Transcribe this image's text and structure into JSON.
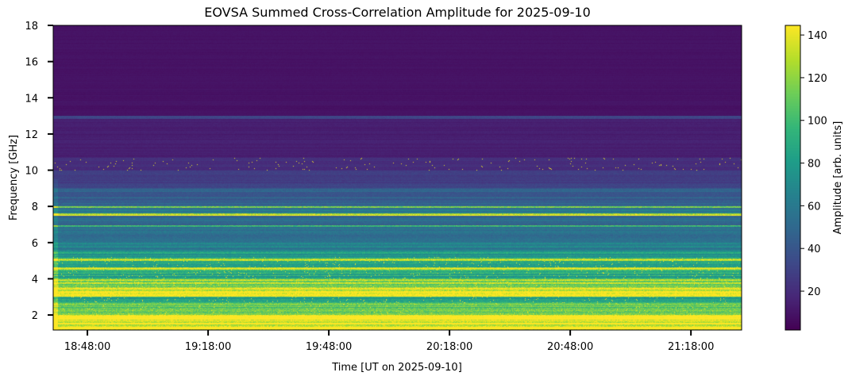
{
  "chart_data": {
    "type": "heatmap",
    "title": "EOVSA Summed Cross-Correlation Amplitude for 2025-09-10",
    "xlabel": "Time [UT on 2025-09-10]",
    "ylabel": "Frequency [GHz]",
    "colorbar_label": "Amplitude [arb. units]",
    "colormap": "viridis",
    "xlim_minutes_after_1848": [
      -8.5,
      162.6
    ],
    "ylim": [
      1.17,
      18
    ],
    "clim": [
      1.8,
      144.5
    ],
    "x_ticks": [
      {
        "label": "18:48:00",
        "minutes": 0
      },
      {
        "label": "19:18:00",
        "minutes": 30
      },
      {
        "label": "19:48:00",
        "minutes": 60
      },
      {
        "label": "20:18:00",
        "minutes": 90
      },
      {
        "label": "20:48:00",
        "minutes": 120
      },
      {
        "label": "21:18:00",
        "minutes": 150
      }
    ],
    "y_ticks": [
      {
        "label": "2",
        "value": 2
      },
      {
        "label": "4",
        "value": 4
      },
      {
        "label": "6",
        "value": 6
      },
      {
        "label": "8",
        "value": 8
      },
      {
        "label": "10",
        "value": 10
      },
      {
        "label": "12",
        "value": 12
      },
      {
        "label": "14",
        "value": 14
      },
      {
        "label": "16",
        "value": 16
      },
      {
        "label": "18",
        "value": 18
      }
    ],
    "colorbar_ticks": [
      {
        "label": "20",
        "value": 20
      },
      {
        "label": "40",
        "value": 40
      },
      {
        "label": "60",
        "value": 60
      },
      {
        "label": "80",
        "value": 80
      },
      {
        "label": "100",
        "value": 100
      },
      {
        "label": "120",
        "value": 120
      },
      {
        "label": "140",
        "value": 140
      }
    ],
    "band_profile": [
      {
        "f0": 1.17,
        "f1": 2.0,
        "amp": 145
      },
      {
        "f0": 2.0,
        "f1": 2.7,
        "amp": 108
      },
      {
        "f0": 2.7,
        "f1": 3.0,
        "amp": 88
      },
      {
        "f0": 3.0,
        "f1": 3.5,
        "amp": 138
      },
      {
        "f0": 3.5,
        "f1": 4.0,
        "amp": 120
      },
      {
        "f0": 4.0,
        "f1": 4.5,
        "amp": 88
      },
      {
        "f0": 4.5,
        "f1": 4.62,
        "amp": 142
      },
      {
        "f0": 4.62,
        "f1": 5.0,
        "amp": 82
      },
      {
        "f0": 5.0,
        "f1": 5.12,
        "amp": 125
      },
      {
        "f0": 5.12,
        "f1": 5.5,
        "amp": 78
      },
      {
        "f0": 5.5,
        "f1": 6.0,
        "amp": 62
      },
      {
        "f0": 6.0,
        "f1": 6.85,
        "amp": 52
      },
      {
        "f0": 6.85,
        "f1": 6.95,
        "amp": 105
      },
      {
        "f0": 6.95,
        "f1": 7.5,
        "amp": 52
      },
      {
        "f0": 7.5,
        "f1": 7.6,
        "amp": 142
      },
      {
        "f0": 7.6,
        "f1": 7.9,
        "amp": 58
      },
      {
        "f0": 7.9,
        "f1": 8.0,
        "amp": 118
      },
      {
        "f0": 8.0,
        "f1": 9.0,
        "amp": 45
      },
      {
        "f0": 9.0,
        "f1": 10.0,
        "amp": 28
      },
      {
        "f0": 10.0,
        "f1": 10.7,
        "amp": 20
      },
      {
        "f0": 10.7,
        "f1": 12.85,
        "amp": 14
      },
      {
        "f0": 12.85,
        "f1": 13.0,
        "amp": 32
      },
      {
        "f0": 13.0,
        "f1": 18.0,
        "amp": 9
      }
    ],
    "speckle_band_ghz": [
      10.0,
      10.7
    ]
  }
}
